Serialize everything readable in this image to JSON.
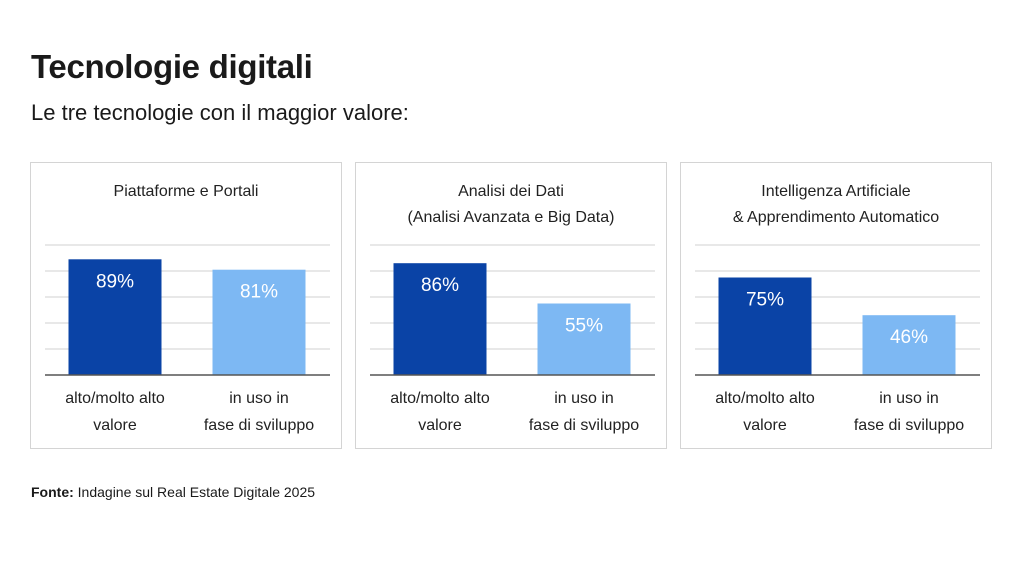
{
  "title": "Tecnologie digitali",
  "subtitle": "Le tre tecnologie con il maggior valore:",
  "colors": {
    "dark_bar": "#0a43a6",
    "light_bar": "#7db8f3",
    "grid": "#d0d0d0",
    "axis": "#555555",
    "panel_border": "#d4d4d4"
  },
  "footer": {
    "label": "Fonte:",
    "text": "Indagine sul Real Estate Digitale 2025"
  },
  "chart_data": [
    {
      "type": "bar",
      "title_lines": [
        "Piattaforme e Portali"
      ],
      "categories": [
        [
          "alto/molto alto",
          "valore"
        ],
        [
          "in uso in",
          "fase di sviluppo"
        ]
      ],
      "values": [
        89,
        81
      ],
      "data_labels": [
        "89%",
        "81%"
      ],
      "ylim": [
        0,
        100
      ],
      "grid": true
    },
    {
      "type": "bar",
      "title_lines": [
        "Analisi dei Dati",
        "(Analisi Avanzata e Big Data)"
      ],
      "categories": [
        [
          "alto/molto alto",
          "valore"
        ],
        [
          "in uso in",
          "fase di sviluppo"
        ]
      ],
      "values": [
        86,
        55
      ],
      "data_labels": [
        "86%",
        "55%"
      ],
      "ylim": [
        0,
        100
      ],
      "grid": true
    },
    {
      "type": "bar",
      "title_lines": [
        "Intelligenza Artificiale",
        "& Apprendimento Automatico"
      ],
      "categories": [
        [
          "alto/molto alto",
          "valore"
        ],
        [
          "in uso in",
          "fase di sviluppo"
        ]
      ],
      "values": [
        75,
        46
      ],
      "data_labels": [
        "75%",
        "46%"
      ],
      "ylim": [
        0,
        100
      ],
      "grid": true
    }
  ]
}
